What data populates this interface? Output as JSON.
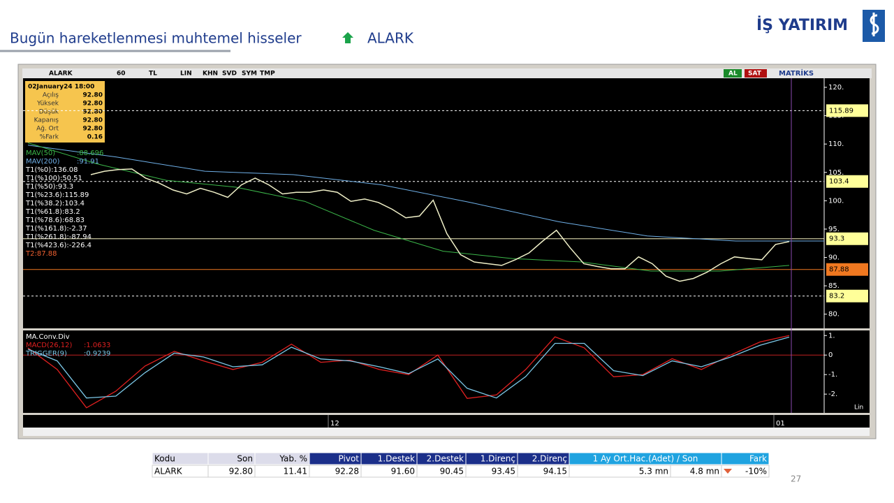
{
  "header": {
    "title": "Bugün hareketlenmesi muhtemel hisseler",
    "ticker": "ALARK",
    "logo": "İŞ YATIRIM"
  },
  "toolbar": {
    "items": [
      "ALARK",
      "60",
      "TL",
      "LIN",
      "KHN",
      "SVD",
      "SYM",
      "TMP"
    ],
    "buy": "AL",
    "sell": "SAT",
    "brand": "MATRİKS"
  },
  "info_box": {
    "date": "02January24 18:00",
    "rows": [
      [
        "Açılış",
        "92.80"
      ],
      [
        "Yüksek",
        "92.80"
      ],
      [
        "Düşük",
        "92.80"
      ],
      [
        "Kapanış",
        "92.80"
      ],
      [
        "Ağ. Ort",
        "92.80"
      ],
      [
        "%Fark",
        "0.16"
      ]
    ]
  },
  "indicators": [
    [
      "MAV(50)",
      ":88.696"
    ],
    [
      "MAV(200)",
      ":91.91"
    ],
    [
      "T1(%0):136.08",
      ""
    ],
    [
      "T1(%100):50.51",
      ""
    ],
    [
      "T1(%50):93.3",
      ""
    ],
    [
      "T1(%23.6):115.89",
      ""
    ],
    [
      "T1(%38.2):103.4",
      ""
    ],
    [
      "T1(%61.8):83.2",
      ""
    ],
    [
      "T1(%78.6):68.83",
      ""
    ],
    [
      "T1(%161.8):-2.37",
      ""
    ],
    [
      "T1(%261.8):-87.94",
      ""
    ],
    [
      "T1(%423.6):-226.4",
      ""
    ],
    [
      "T2:87.88",
      ""
    ]
  ],
  "price": {
    "ylim": [
      77.5,
      121.6
    ],
    "ticks": [
      {
        "value": 120,
        "label": "120."
      },
      {
        "value": 115,
        "label": "115."
      },
      {
        "value": 110,
        "label": "110."
      },
      {
        "value": 105,
        "label": "105."
      },
      {
        "value": 100,
        "label": "100."
      },
      {
        "value": 95,
        "label": "95."
      },
      {
        "value": 90,
        "label": "90."
      },
      {
        "value": 85,
        "label": "85."
      },
      {
        "value": 80,
        "label": "80."
      }
    ],
    "levels": [
      {
        "value": 115.89,
        "label": "115.89",
        "style": "dashed",
        "color": "#ffffff"
      },
      {
        "value": 103.4,
        "label": "103.4",
        "style": "dashed",
        "color": "#ffffff"
      },
      {
        "value": 93.3,
        "label": "93.3",
        "style": "solid",
        "color": "#f4f0c0"
      },
      {
        "value": 87.88,
        "label": "87.88",
        "style": "solid",
        "color": "#f07820"
      },
      {
        "value": 83.2,
        "label": "83.2",
        "style": "dashed",
        "color": "#ffffff"
      }
    ],
    "close": [
      104.6,
      105.2,
      105.5,
      105.6,
      104.0,
      103.1,
      101.9,
      101.2,
      102.2,
      101.5,
      100.6,
      102.8,
      104.0,
      102.8,
      101.2,
      101.5,
      101.5,
      101.9,
      101.5,
      99.9,
      100.3,
      99.7,
      98.5,
      97.0,
      97.3,
      100.1,
      94.2,
      90.5,
      89.2,
      88.9,
      88.6,
      89.6,
      90.8,
      92.9,
      94.8,
      91.7,
      88.9,
      88.4,
      88.0,
      88.0,
      90.1,
      88.9,
      86.7,
      85.8,
      86.3,
      87.4,
      88.9,
      90.1,
      89.8,
      89.6,
      92.3,
      92.8
    ],
    "mav50": [
      110.2,
      106.5,
      103.6,
      102.4,
      99.9,
      94.8,
      91.1,
      89.8,
      89.2,
      87.6,
      87.6,
      88.6
    ],
    "mav200": [
      109.8,
      107.7,
      105.2,
      104.6,
      102.8,
      99.7,
      96.3,
      93.8,
      92.9,
      92.9
    ]
  },
  "macd": {
    "title": "MA.Conv.Div",
    "labels": [
      [
        "MACD(26,12)",
        ":1.0633"
      ],
      [
        "TRIGGER(9)",
        ":0.9239"
      ]
    ],
    "scale": "Lin",
    "ylim": [
      -2.96,
      1.26
    ],
    "ticks": [
      {
        "value": 1,
        "label": "1."
      },
      0,
      {
        "value": -1,
        "label": "-1."
      },
      {
        "value": -2,
        "label": "-2."
      }
    ],
    "macd": [
      0.37,
      -0.74,
      -2.7,
      -1.85,
      -0.56,
      0.19,
      -0.3,
      -0.74,
      -0.37,
      0.56,
      -0.37,
      -0.26,
      -0.74,
      -1.0,
      0.0,
      -2.22,
      -2.04,
      -0.74,
      0.93,
      0.37,
      -1.11,
      -1.0,
      -0.19,
      -0.74,
      0.0,
      0.67,
      1.0
    ],
    "trigger": [
      0.3,
      -0.3,
      -2.2,
      -2.1,
      -0.9,
      0.1,
      -0.1,
      -0.6,
      -0.5,
      0.4,
      -0.2,
      -0.3,
      -0.6,
      -0.95,
      -0.2,
      -1.7,
      -2.2,
      -1.1,
      0.6,
      0.6,
      -0.8,
      -1.05,
      -0.3,
      -0.6,
      -0.1,
      0.5,
      0.92
    ]
  },
  "time_axis": [
    "12",
    "01"
  ],
  "table": {
    "headers": [
      "Kodu",
      "Son",
      "Yab. %",
      "Pivot",
      "1.Destek",
      "2.Destek",
      "1.Direnç",
      "2.Direnç",
      "1 Ay Ort.Hac.(Adet)  /  Son",
      "Fark"
    ],
    "row": [
      "ALARK",
      "92.80",
      "11.41",
      "92.28",
      "91.60",
      "90.45",
      "93.45",
      "94.15",
      "5.3 mn",
      "4.8 mn",
      "-10%"
    ]
  },
  "page_number": "27"
}
